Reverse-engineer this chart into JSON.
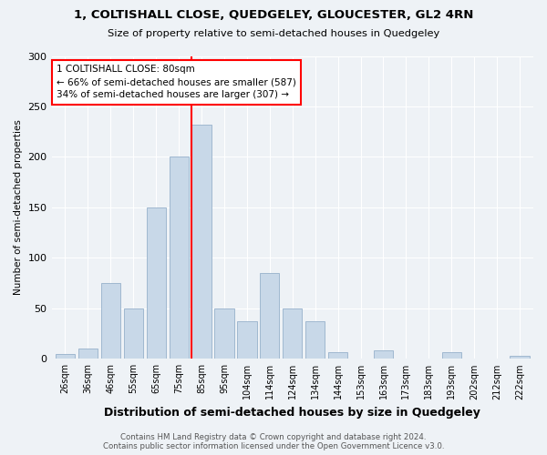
{
  "title1": "1, COLTISHALL CLOSE, QUEDGELEY, GLOUCESTER, GL2 4RN",
  "title2": "Size of property relative to semi-detached houses in Quedgeley",
  "xlabel": "Distribution of semi-detached houses by size in Quedgeley",
  "ylabel": "Number of semi-detached properties",
  "categories": [
    "26sqm",
    "36sqm",
    "46sqm",
    "55sqm",
    "65sqm",
    "75sqm",
    "85sqm",
    "95sqm",
    "104sqm",
    "114sqm",
    "124sqm",
    "134sqm",
    "144sqm",
    "153sqm",
    "163sqm",
    "173sqm",
    "183sqm",
    "193sqm",
    "202sqm",
    "212sqm",
    "222sqm"
  ],
  "values": [
    5,
    10,
    75,
    50,
    150,
    200,
    232,
    50,
    37,
    85,
    50,
    37,
    7,
    0,
    8,
    0,
    0,
    7,
    0,
    0,
    3
  ],
  "bar_color": "#c8d8e8",
  "bar_edge_color": "#a0b8d0",
  "property_bin_index": 6,
  "annotation_line1": "1 COLTISHALL CLOSE: 80sqm",
  "annotation_line2": "← 66% of semi-detached houses are smaller (587)",
  "annotation_line3": "34% of semi-detached houses are larger (307) →",
  "annotation_box_color": "white",
  "annotation_box_edge_color": "red",
  "vline_color": "red",
  "footer": "Contains HM Land Registry data © Crown copyright and database right 2024.\nContains public sector information licensed under the Open Government Licence v3.0.",
  "bg_color": "#eef2f6",
  "ylim": [
    0,
    300
  ],
  "yticks": [
    0,
    50,
    100,
    150,
    200,
    250,
    300
  ]
}
